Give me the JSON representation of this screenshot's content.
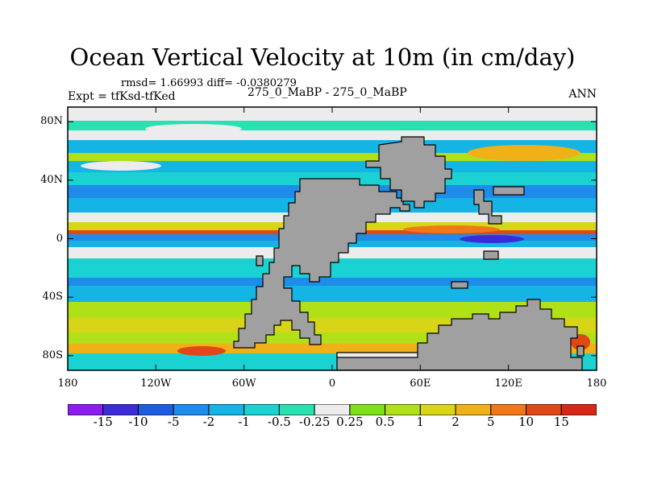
{
  "title": "Ocean Vertical Velocity at 10m (in cm/day)",
  "stats": "rmsd= 1.66993  diff= -0.0380279",
  "experiment": "Expt = tfKsd-tfKed",
  "cases": "275_0_MaBP - 275_0_MaBP",
  "season": "ANN",
  "map": {
    "projection": "cylindrical-equidistant",
    "lon_range": [
      -180,
      180
    ],
    "lat_range": [
      -90,
      90
    ],
    "lat_ticks": [
      {
        "value": 80,
        "label": "80N"
      },
      {
        "value": 40,
        "label": "40N"
      },
      {
        "value": 0,
        "label": "0"
      },
      {
        "value": -40,
        "label": "40S"
      },
      {
        "value": -80,
        "label": "80S"
      }
    ],
    "lon_ticks": [
      {
        "value": -180,
        "label": "180"
      },
      {
        "value": -120,
        "label": "120W"
      },
      {
        "value": -60,
        "label": "60W"
      },
      {
        "value": 0,
        "label": "0"
      },
      {
        "value": 60,
        "label": "60E"
      },
      {
        "value": 120,
        "label": "120E"
      },
      {
        "value": 180,
        "label": "180"
      }
    ],
    "land_color": "#a0a0a0"
  },
  "colorbar": {
    "labels": [
      "-15",
      "-10",
      "-5",
      "-2",
      "-1",
      "-0.5",
      "-0.25",
      "0.25",
      "0.5",
      "1",
      "2",
      "5",
      "10",
      "15"
    ],
    "colors": [
      "#8c1cf0",
      "#3c2cd8",
      "#1c5ce0",
      "#1e8ce8",
      "#14b4e4",
      "#1ad2d2",
      "#28e0b0",
      "#ececec",
      "#7ee018",
      "#b0e018",
      "#d8d418",
      "#f0b018",
      "#f07818",
      "#e04818",
      "#d82818"
    ]
  }
}
